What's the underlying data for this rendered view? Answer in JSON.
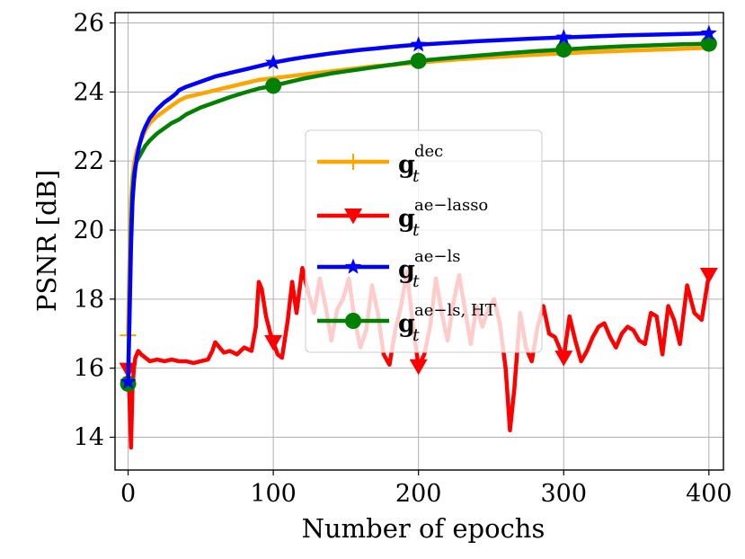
{
  "chart_data": {
    "type": "line",
    "title": "",
    "xlabel": "Number of epochs",
    "ylabel": "PSNR [dB]",
    "xlim": [
      -9,
      410
    ],
    "ylim": [
      13.05,
      26.3
    ],
    "xticks": [
      0,
      100,
      200,
      300,
      400
    ],
    "yticks": [
      14,
      16,
      18,
      20,
      22,
      24,
      26
    ],
    "xtick_labels": [
      "0",
      "100",
      "200",
      "300",
      "400"
    ],
    "ytick_labels": [
      "14",
      "16",
      "18",
      "20",
      "22",
      "24",
      "26"
    ],
    "grid": true,
    "legend_position": "center-right",
    "series": [
      {
        "name": "dec",
        "legend_main": "g",
        "legend_sub": "t",
        "legend_sup": "dec",
        "color": "#FFA500",
        "marker": "plus",
        "markers_at": [
          0
        ],
        "x": [
          0,
          1,
          2,
          3,
          4,
          5,
          6,
          8,
          10,
          12,
          15,
          20,
          25,
          30,
          35,
          40,
          50,
          60,
          70,
          80,
          90,
          100,
          110,
          120,
          130,
          140,
          150,
          160,
          170,
          180,
          190,
          200,
          220,
          240,
          260,
          280,
          300,
          320,
          340,
          360,
          380,
          400
        ],
        "y": [
          16.95,
          19.3,
          20.9,
          21.5,
          21.9,
          22.1,
          22.3,
          22.5,
          22.7,
          22.9,
          23.1,
          23.3,
          23.45,
          23.6,
          23.75,
          23.85,
          23.95,
          24.05,
          24.15,
          24.25,
          24.35,
          24.4,
          24.45,
          24.5,
          24.55,
          24.6,
          24.65,
          24.7,
          24.75,
          24.78,
          24.82,
          24.85,
          24.92,
          24.98,
          25.03,
          25.08,
          25.12,
          25.16,
          25.19,
          25.22,
          25.25,
          25.28
        ]
      },
      {
        "name": "ae-lasso",
        "legend_main": "g",
        "legend_sub": "t",
        "legend_sup": "ae−lasso",
        "color": "#FF0000",
        "marker": "triangle-down",
        "markers_at": [
          0,
          100,
          200,
          300,
          400
        ],
        "x": [
          0,
          1,
          2,
          3,
          4,
          5,
          7,
          9,
          12,
          15,
          20,
          25,
          30,
          35,
          40,
          45,
          50,
          55,
          58,
          60,
          63,
          66,
          70,
          75,
          80,
          85,
          88,
          90,
          92,
          95,
          98,
          100,
          103,
          106,
          110,
          113,
          116,
          120,
          124,
          128,
          132,
          136,
          140,
          144,
          148,
          152,
          156,
          160,
          164,
          168,
          172,
          176,
          180,
          184,
          188,
          192,
          196,
          200,
          204,
          208,
          212,
          216,
          220,
          224,
          228,
          232,
          236,
          240,
          244,
          248,
          252,
          256,
          260,
          263,
          266,
          270,
          274,
          278,
          282,
          286,
          290,
          294,
          298,
          300,
          304,
          308,
          312,
          316,
          320,
          324,
          328,
          332,
          336,
          340,
          344,
          348,
          352,
          356,
          360,
          364,
          368,
          372,
          376,
          380,
          385,
          390,
          395,
          400
        ],
        "y": [
          15.95,
          15.1,
          13.7,
          15.4,
          16.0,
          16.3,
          16.5,
          16.4,
          16.3,
          16.2,
          16.25,
          16.2,
          16.25,
          16.2,
          16.2,
          16.15,
          16.2,
          16.25,
          16.5,
          16.75,
          16.6,
          16.45,
          16.5,
          16.4,
          16.6,
          16.5,
          17.2,
          18.5,
          18.3,
          17.5,
          17.0,
          16.75,
          16.4,
          16.3,
          17.4,
          18.5,
          17.6,
          18.9,
          18.2,
          17.6,
          18.6,
          17.8,
          16.8,
          17.7,
          18.0,
          18.6,
          17.4,
          16.6,
          17.1,
          18.4,
          17.6,
          16.4,
          16.1,
          17.1,
          17.8,
          18.8,
          17.3,
          16.05,
          16.4,
          17.2,
          18.6,
          17.6,
          16.8,
          17.9,
          18.7,
          17.7,
          16.7,
          17.8,
          17.2,
          17.7,
          18.0,
          17.3,
          16.0,
          14.2,
          15.4,
          17.6,
          16.6,
          16.2,
          17.2,
          17.8,
          17.0,
          16.9,
          16.5,
          16.3,
          17.5,
          16.8,
          16.2,
          16.5,
          16.9,
          17.2,
          17.3,
          16.9,
          16.6,
          17.0,
          17.2,
          17.1,
          16.8,
          16.7,
          17.6,
          17.5,
          16.4,
          17.8,
          17.4,
          16.7,
          18.4,
          17.6,
          17.4,
          18.7
        ]
      },
      {
        "name": "ae-ls",
        "legend_main": "g",
        "legend_sub": "t",
        "legend_sup": "ae−ls",
        "color": "#0000FF",
        "marker": "star",
        "markers_at": [
          0,
          100,
          200,
          300,
          400
        ],
        "x": [
          0,
          1,
          2,
          3,
          4,
          5,
          6,
          8,
          10,
          12,
          15,
          20,
          25,
          30,
          33,
          35,
          40,
          50,
          60,
          70,
          80,
          90,
          100,
          110,
          120,
          130,
          140,
          150,
          160,
          170,
          180,
          190,
          200,
          220,
          240,
          260,
          280,
          300,
          320,
          340,
          360,
          380,
          400
        ],
        "y": [
          15.6,
          17.5,
          19.5,
          20.8,
          21.4,
          21.8,
          22.1,
          22.5,
          22.8,
          23.0,
          23.25,
          23.5,
          23.7,
          23.85,
          23.95,
          24.05,
          24.15,
          24.3,
          24.45,
          24.55,
          24.65,
          24.75,
          24.85,
          24.93,
          25.0,
          25.06,
          25.12,
          25.17,
          25.22,
          25.26,
          25.3,
          25.34,
          25.37,
          25.42,
          25.47,
          25.51,
          25.55,
          25.58,
          25.61,
          25.64,
          25.66,
          25.68,
          25.7
        ]
      },
      {
        "name": "ae-ls, HT",
        "legend_main": "g",
        "legend_sub": "t",
        "legend_sup": "ae−ls, HT",
        "color": "#008000",
        "marker": "circle",
        "markers_at": [
          0,
          100,
          200,
          300,
          400
        ],
        "x": [
          0,
          1,
          2,
          3,
          4,
          5,
          6,
          8,
          10,
          12,
          15,
          20,
          25,
          30,
          35,
          40,
          50,
          60,
          70,
          80,
          90,
          100,
          110,
          120,
          130,
          140,
          150,
          160,
          170,
          180,
          190,
          200,
          220,
          240,
          260,
          280,
          300,
          320,
          340,
          360,
          380,
          400
        ],
        "y": [
          15.55,
          17.8,
          20.0,
          21.1,
          21.6,
          21.85,
          22.0,
          22.15,
          22.3,
          22.45,
          22.6,
          22.8,
          22.95,
          23.1,
          23.2,
          23.35,
          23.55,
          23.7,
          23.85,
          23.98,
          24.1,
          24.18,
          24.28,
          24.38,
          24.46,
          24.54,
          24.6,
          24.66,
          24.72,
          24.78,
          24.84,
          24.9,
          24.98,
          25.05,
          25.12,
          25.18,
          25.23,
          25.28,
          25.32,
          25.35,
          25.38,
          25.4
        ]
      }
    ]
  }
}
